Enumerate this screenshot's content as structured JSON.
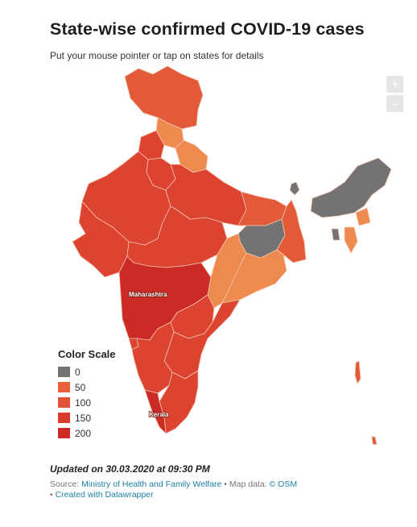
{
  "title": "State-wise confirmed COVID-19 cases",
  "subtitle": "Put your mouse pointer or tap on states for details",
  "zoom": {
    "in": "+",
    "out": "–"
  },
  "map": {
    "labels": {
      "maharashtra": "Maharashtra",
      "kerala": "Kerala"
    },
    "colors": {
      "zero": "#737373",
      "light": "#ef8a4f",
      "medium": "#e35a38",
      "dark": "#dc4330",
      "darkest": "#cc2a25",
      "border": "#f3c6b0"
    }
  },
  "legend": {
    "title": "Color Scale",
    "items": [
      {
        "label": "0",
        "color": "#737373"
      },
      {
        "label": "50",
        "color": "#e8613a"
      },
      {
        "label": "100",
        "color": "#e25237"
      },
      {
        "label": "150",
        "color": "#d93c2d"
      },
      {
        "label": "200",
        "color": "#cc2a25"
      }
    ]
  },
  "updated": "Updated on 30.03.2020 at 09:30 PM",
  "source": {
    "prefix": "Source: ",
    "source_link": "Ministry of Health and Family Welfare",
    "map_prefix": " • Map data: ",
    "map_link": "© OSM",
    "created_prefix": "• ",
    "created_link": "Created with Datawrapper"
  }
}
